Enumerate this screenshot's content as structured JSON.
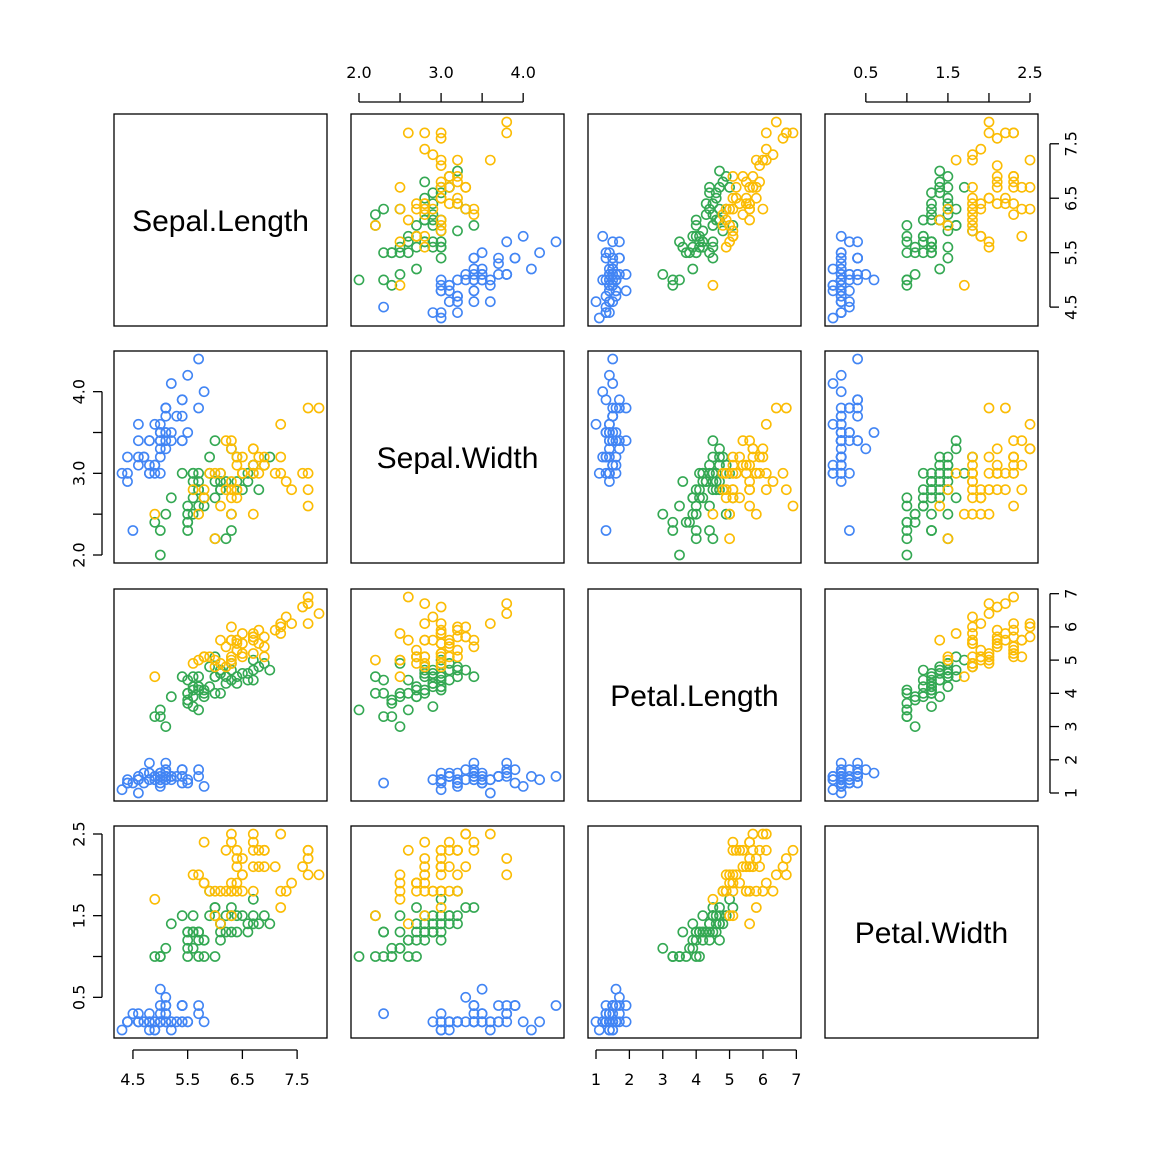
{
  "chart_data": {
    "type": "scatter",
    "variables": [
      "Sepal.Length",
      "Sepal.Width",
      "Petal.Length",
      "Petal.Width"
    ],
    "ranges": {
      "Sepal.Length": [
        4.3,
        7.9
      ],
      "Sepal.Width": [
        2.0,
        4.4
      ],
      "Petal.Length": [
        1.0,
        6.9
      ],
      "Petal.Width": [
        0.1,
        2.5
      ]
    },
    "ticks": {
      "Sepal.Length": [
        4.5,
        5.5,
        6.5,
        7.5
      ],
      "Sepal.Width": [
        2.0,
        2.5,
        3.0,
        3.5,
        4.0
      ],
      "Petal.Length": [
        1,
        2,
        3,
        4,
        5,
        6,
        7
      ],
      "Petal.Width": [
        0.5,
        1.0,
        1.5,
        2.0,
        2.5
      ]
    },
    "tick_labels": {
      "Sepal.Length": [
        "4.5",
        "5.5",
        "6.5",
        "7.5"
      ],
      "Sepal.Width": [
        "2.0",
        "",
        "3.0",
        "",
        "4.0"
      ],
      "Petal.Length": [
        "1",
        "2",
        "3",
        "4",
        "5",
        "6",
        "7"
      ],
      "Petal.Width": [
        "0.5",
        "",
        "1.5",
        "",
        "2.5"
      ]
    },
    "series": [
      {
        "color": "#4285F4",
        "points": [
          [
            5.1,
            3.5,
            1.4,
            0.2
          ],
          [
            4.9,
            3.0,
            1.4,
            0.2
          ],
          [
            4.7,
            3.2,
            1.3,
            0.2
          ],
          [
            4.6,
            3.1,
            1.5,
            0.2
          ],
          [
            5.0,
            3.6,
            1.4,
            0.2
          ],
          [
            5.4,
            3.9,
            1.7,
            0.4
          ],
          [
            4.6,
            3.4,
            1.4,
            0.3
          ],
          [
            5.0,
            3.4,
            1.5,
            0.2
          ],
          [
            4.4,
            2.9,
            1.4,
            0.2
          ],
          [
            4.9,
            3.1,
            1.5,
            0.1
          ],
          [
            5.4,
            3.7,
            1.5,
            0.2
          ],
          [
            4.8,
            3.4,
            1.6,
            0.2
          ],
          [
            4.8,
            3.0,
            1.4,
            0.1
          ],
          [
            4.3,
            3.0,
            1.1,
            0.1
          ],
          [
            5.8,
            4.0,
            1.2,
            0.2
          ],
          [
            5.7,
            4.4,
            1.5,
            0.4
          ],
          [
            5.4,
            3.9,
            1.3,
            0.4
          ],
          [
            5.1,
            3.5,
            1.4,
            0.3
          ],
          [
            5.7,
            3.8,
            1.7,
            0.3
          ],
          [
            5.1,
            3.8,
            1.5,
            0.3
          ],
          [
            5.4,
            3.4,
            1.7,
            0.2
          ],
          [
            5.1,
            3.7,
            1.5,
            0.4
          ],
          [
            4.6,
            3.6,
            1.0,
            0.2
          ],
          [
            5.1,
            3.3,
            1.7,
            0.5
          ],
          [
            4.8,
            3.4,
            1.9,
            0.2
          ],
          [
            5.0,
            3.0,
            1.6,
            0.2
          ],
          [
            5.0,
            3.4,
            1.6,
            0.4
          ],
          [
            5.2,
            3.5,
            1.5,
            0.2
          ],
          [
            5.2,
            3.4,
            1.4,
            0.2
          ],
          [
            4.7,
            3.2,
            1.6,
            0.2
          ],
          [
            4.8,
            3.1,
            1.6,
            0.2
          ],
          [
            5.4,
            3.4,
            1.5,
            0.4
          ],
          [
            5.2,
            4.1,
            1.5,
            0.1
          ],
          [
            5.5,
            4.2,
            1.4,
            0.2
          ],
          [
            4.9,
            3.1,
            1.5,
            0.2
          ],
          [
            5.0,
            3.2,
            1.2,
            0.2
          ],
          [
            5.5,
            3.5,
            1.3,
            0.2
          ],
          [
            4.9,
            3.6,
            1.4,
            0.1
          ],
          [
            4.4,
            3.0,
            1.3,
            0.2
          ],
          [
            5.1,
            3.4,
            1.5,
            0.2
          ],
          [
            5.0,
            3.5,
            1.3,
            0.3
          ],
          [
            4.5,
            2.3,
            1.3,
            0.3
          ],
          [
            4.4,
            3.2,
            1.3,
            0.2
          ],
          [
            5.0,
            3.5,
            1.6,
            0.6
          ],
          [
            5.1,
            3.8,
            1.9,
            0.4
          ],
          [
            4.8,
            3.0,
            1.4,
            0.3
          ],
          [
            5.1,
            3.8,
            1.6,
            0.2
          ],
          [
            4.6,
            3.2,
            1.4,
            0.2
          ],
          [
            5.3,
            3.7,
            1.5,
            0.2
          ],
          [
            5.0,
            3.3,
            1.4,
            0.2
          ]
        ]
      },
      {
        "color": "#34A853",
        "points": [
          [
            7.0,
            3.2,
            4.7,
            1.4
          ],
          [
            6.4,
            3.2,
            4.5,
            1.5
          ],
          [
            6.9,
            3.1,
            4.9,
            1.5
          ],
          [
            5.5,
            2.3,
            4.0,
            1.3
          ],
          [
            6.5,
            2.8,
            4.6,
            1.5
          ],
          [
            5.7,
            2.8,
            4.5,
            1.3
          ],
          [
            6.3,
            3.3,
            4.7,
            1.6
          ],
          [
            4.9,
            2.4,
            3.3,
            1.0
          ],
          [
            6.6,
            2.9,
            4.6,
            1.3
          ],
          [
            5.2,
            2.7,
            3.9,
            1.4
          ],
          [
            5.0,
            2.0,
            3.5,
            1.0
          ],
          [
            5.9,
            3.0,
            4.2,
            1.5
          ],
          [
            6.0,
            2.2,
            4.0,
            1.0
          ],
          [
            6.1,
            2.9,
            4.7,
            1.4
          ],
          [
            5.6,
            2.9,
            3.6,
            1.3
          ],
          [
            6.7,
            3.1,
            4.4,
            1.4
          ],
          [
            5.6,
            3.0,
            4.5,
            1.5
          ],
          [
            5.8,
            2.7,
            4.1,
            1.0
          ],
          [
            6.2,
            2.2,
            4.5,
            1.5
          ],
          [
            5.6,
            2.5,
            3.9,
            1.1
          ],
          [
            5.9,
            3.2,
            4.8,
            1.8
          ],
          [
            6.1,
            2.8,
            4.0,
            1.3
          ],
          [
            6.3,
            2.5,
            4.9,
            1.5
          ],
          [
            6.1,
            2.8,
            4.7,
            1.2
          ],
          [
            6.4,
            2.9,
            4.3,
            1.3
          ],
          [
            6.6,
            3.0,
            4.4,
            1.4
          ],
          [
            6.8,
            2.8,
            4.8,
            1.4
          ],
          [
            6.7,
            3.0,
            5.0,
            1.7
          ],
          [
            6.0,
            2.9,
            4.5,
            1.5
          ],
          [
            5.7,
            2.6,
            3.5,
            1.0
          ],
          [
            5.5,
            2.4,
            3.8,
            1.1
          ],
          [
            5.5,
            2.4,
            3.7,
            1.0
          ],
          [
            5.8,
            2.7,
            3.9,
            1.2
          ],
          [
            6.0,
            2.7,
            5.1,
            1.6
          ],
          [
            5.4,
            3.0,
            4.5,
            1.5
          ],
          [
            6.0,
            3.4,
            4.5,
            1.6
          ],
          [
            6.7,
            3.1,
            4.7,
            1.5
          ],
          [
            6.3,
            2.3,
            4.4,
            1.3
          ],
          [
            5.6,
            3.0,
            4.1,
            1.3
          ],
          [
            5.5,
            2.5,
            4.0,
            1.3
          ],
          [
            5.5,
            2.6,
            4.4,
            1.2
          ],
          [
            6.1,
            3.0,
            4.6,
            1.4
          ],
          [
            5.8,
            2.6,
            4.0,
            1.2
          ],
          [
            5.0,
            2.3,
            3.3,
            1.0
          ],
          [
            5.6,
            2.7,
            4.2,
            1.3
          ],
          [
            5.7,
            3.0,
            4.2,
            1.2
          ],
          [
            5.7,
            2.9,
            4.2,
            1.3
          ],
          [
            6.2,
            2.9,
            4.3,
            1.3
          ],
          [
            5.1,
            2.5,
            3.0,
            1.1
          ],
          [
            5.7,
            2.8,
            4.1,
            1.3
          ]
        ]
      },
      {
        "color": "#FBBC04",
        "points": [
          [
            6.3,
            3.3,
            6.0,
            2.5
          ],
          [
            5.8,
            2.7,
            5.1,
            1.9
          ],
          [
            7.1,
            3.0,
            5.9,
            2.1
          ],
          [
            6.3,
            2.9,
            5.6,
            1.8
          ],
          [
            6.5,
            3.0,
            5.8,
            2.2
          ],
          [
            7.6,
            3.0,
            6.6,
            2.1
          ],
          [
            4.9,
            2.5,
            4.5,
            1.7
          ],
          [
            7.3,
            2.9,
            6.3,
            1.8
          ],
          [
            6.7,
            2.5,
            5.8,
            1.8
          ],
          [
            7.2,
            3.6,
            6.1,
            2.5
          ],
          [
            6.5,
            3.2,
            5.1,
            2.0
          ],
          [
            6.4,
            2.7,
            5.3,
            1.9
          ],
          [
            6.8,
            3.0,
            5.5,
            2.1
          ],
          [
            5.7,
            2.5,
            5.0,
            2.0
          ],
          [
            5.8,
            2.8,
            5.1,
            2.4
          ],
          [
            6.4,
            3.2,
            5.3,
            2.3
          ],
          [
            6.5,
            3.0,
            5.5,
            1.8
          ],
          [
            7.7,
            3.8,
            6.7,
            2.2
          ],
          [
            7.7,
            2.6,
            6.9,
            2.3
          ],
          [
            6.0,
            2.2,
            5.0,
            1.5
          ],
          [
            6.9,
            3.2,
            5.7,
            2.3
          ],
          [
            5.6,
            2.8,
            4.9,
            2.0
          ],
          [
            7.7,
            2.8,
            6.7,
            2.0
          ],
          [
            6.3,
            2.7,
            4.9,
            1.8
          ],
          [
            6.7,
            3.3,
            5.7,
            2.1
          ],
          [
            7.2,
            3.2,
            6.0,
            1.8
          ],
          [
            6.2,
            2.8,
            4.8,
            1.8
          ],
          [
            6.1,
            3.0,
            4.9,
            1.8
          ],
          [
            6.4,
            2.8,
            5.6,
            2.1
          ],
          [
            7.2,
            3.0,
            5.8,
            1.6
          ],
          [
            7.4,
            2.8,
            6.1,
            1.9
          ],
          [
            7.9,
            3.8,
            6.4,
            2.0
          ],
          [
            6.4,
            2.8,
            5.6,
            2.2
          ],
          [
            6.3,
            2.8,
            5.1,
            1.5
          ],
          [
            6.1,
            2.6,
            5.6,
            1.4
          ],
          [
            7.7,
            3.0,
            6.1,
            2.3
          ],
          [
            6.3,
            3.4,
            5.6,
            2.4
          ],
          [
            6.4,
            3.1,
            5.5,
            1.8
          ],
          [
            6.0,
            3.0,
            4.8,
            1.8
          ],
          [
            6.9,
            3.1,
            5.4,
            2.1
          ],
          [
            6.7,
            3.1,
            5.6,
            2.4
          ],
          [
            6.9,
            3.1,
            5.1,
            2.3
          ],
          [
            5.8,
            2.7,
            5.1,
            1.9
          ],
          [
            6.8,
            3.2,
            5.9,
            2.3
          ],
          [
            6.7,
            3.3,
            5.7,
            2.5
          ],
          [
            6.7,
            3.0,
            5.2,
            2.3
          ],
          [
            6.3,
            2.5,
            5.0,
            1.9
          ],
          [
            6.5,
            3.0,
            5.2,
            2.0
          ],
          [
            6.2,
            3.4,
            5.4,
            2.3
          ],
          [
            5.9,
            3.0,
            5.1,
            1.8
          ]
        ]
      }
    ],
    "grid": false,
    "legend": "none"
  }
}
